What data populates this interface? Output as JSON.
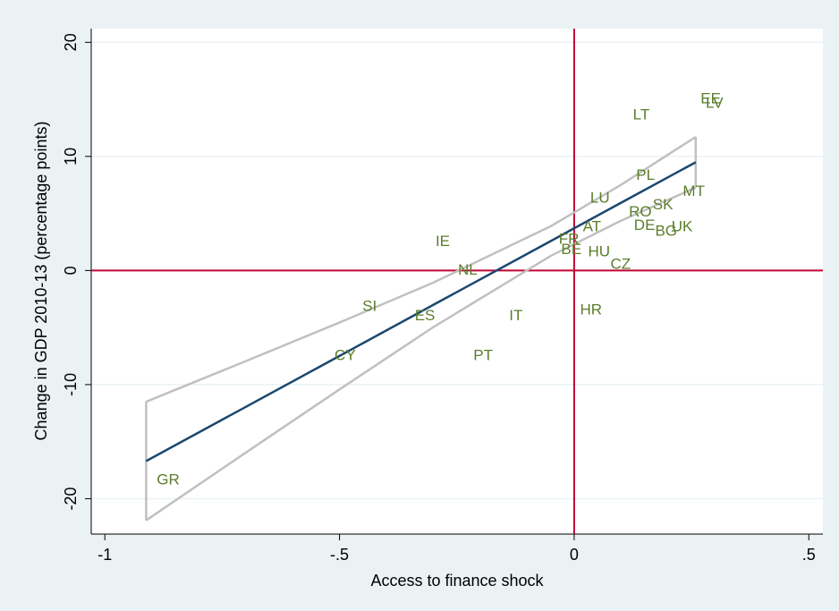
{
  "chart_data": {
    "type": "scatter",
    "x_label": "Access to finance shock",
    "y_label": "Change in GDP 2010-13 (percentage points)",
    "point_labels": [
      "GR",
      "CY",
      "SI",
      "ES",
      "IE",
      "NL",
      "IT",
      "PT",
      "FR",
      "BE",
      "HR",
      "AT",
      "HU",
      "LU",
      "CZ",
      "PL",
      "LT",
      "RO",
      "DE",
      "SK",
      "BG",
      "UK",
      "MT",
      "EE",
      "LV"
    ],
    "x": [
      -0.865,
      -0.488,
      -0.436,
      -0.318,
      -0.28,
      -0.227,
      -0.124,
      -0.194,
      -0.011,
      -0.006,
      0.036,
      0.038,
      0.053,
      0.055,
      0.099,
      0.152,
      0.143,
      0.141,
      0.15,
      0.189,
      0.196,
      0.23,
      0.255,
      0.291,
      0.299
    ],
    "values": [
      -18.4,
      -7.5,
      -3.2,
      -4.0,
      2.5,
      0.0,
      -4.0,
      -7.5,
      2.7,
      1.8,
      -3.5,
      3.8,
      1.6,
      6.3,
      0.5,
      8.3,
      13.6,
      5.1,
      3.9,
      5.7,
      3.4,
      3.8,
      6.9,
      15.0,
      14.6
    ],
    "label_color": "#5a7d2a",
    "fit": {
      "x": [
        -0.912,
        -0.7,
        -0.5,
        -0.3,
        -0.05,
        0.1,
        0.259
      ],
      "y": [
        -16.7,
        -11.96,
        -7.49,
        -3.01,
        2.58,
        5.94,
        9.49
      ],
      "upper": [
        -11.5,
        -7.95,
        -4.56,
        -1.06,
        3.88,
        7.51,
        11.71
      ],
      "lower": [
        -21.9,
        -15.97,
        -10.42,
        -4.96,
        1.28,
        4.37,
        7.27
      ],
      "color": "#1a476f",
      "ci_color": "#c0c0c0"
    },
    "reference_lines": {
      "x": 0,
      "y": 0,
      "color": "#c10534"
    },
    "xlim": [
      -1.029,
      0.53
    ],
    "ylim": [
      -23.1,
      21.2
    ],
    "xticks": [
      {
        "value": -1,
        "label": "-1"
      },
      {
        "value": -0.5,
        "label": "-.5"
      },
      0,
      {
        "value": 0.5,
        "label": ".5"
      }
    ],
    "yticks": [
      -20,
      -10,
      0,
      10,
      20
    ],
    "grid": true
  }
}
